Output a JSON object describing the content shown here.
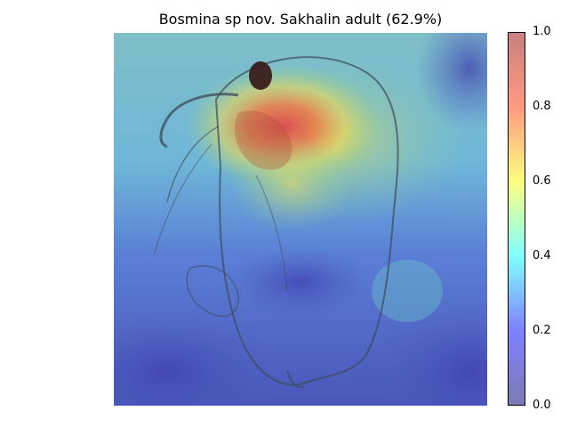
{
  "figure": {
    "title": "Bosmina sp nov. Sakhalin adult (62.9%)"
  },
  "image": {
    "subject": "bosmina-micrograph-with-attention-heatmap",
    "colormap": "jet",
    "peak_region": "head and eye"
  },
  "colorbar": {
    "range": [
      0.0,
      1.0
    ],
    "ticks": [
      "0.0",
      "0.2",
      "0.4",
      "0.6",
      "0.8",
      "1.0"
    ],
    "tick_values": [
      0.0,
      0.2,
      0.4,
      0.6,
      0.8,
      1.0
    ],
    "colors": [
      "#7b7bb4",
      "#8080ff",
      "#80ffff",
      "#ffff80",
      "#ff9a80",
      "#c88080"
    ]
  }
}
